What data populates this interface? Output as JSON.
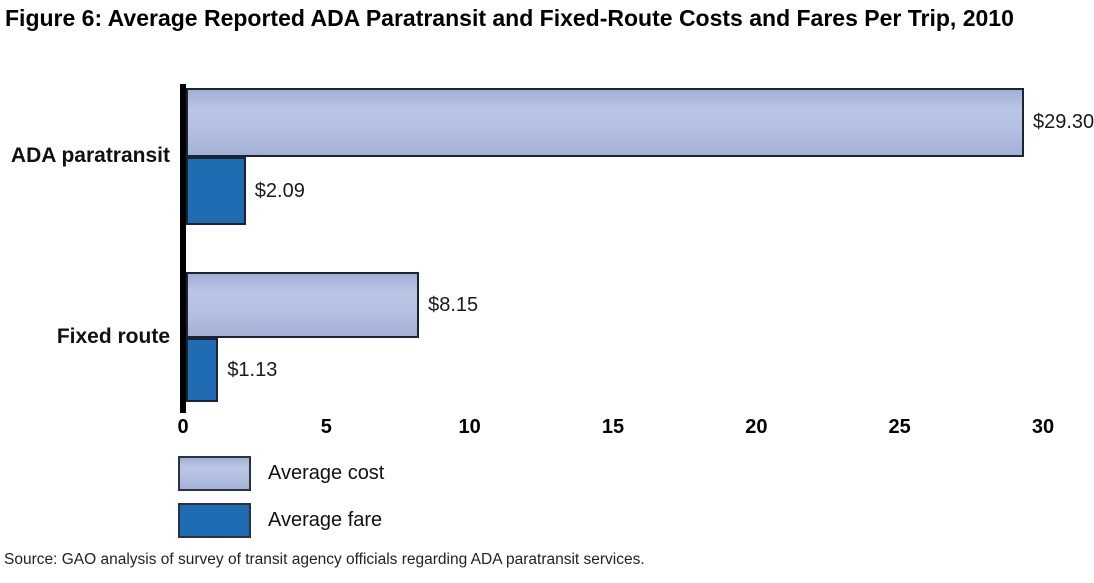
{
  "figure": {
    "title": "Figure 6: Average Reported ADA Paratransit and Fixed-Route Costs and Fares Per Trip, 2010",
    "source": "Source: GAO analysis of survey of transit agency officials regarding ADA paratransit services."
  },
  "chart_data": {
    "type": "bar",
    "orientation": "horizontal",
    "title": "Figure 6: Average Reported ADA Paratransit and Fixed-Route Costs and Fares Per Trip, 2010",
    "categories": [
      "ADA paratransit",
      "Fixed route"
    ],
    "series": [
      {
        "name": "Average cost",
        "values": [
          29.3,
          8.15
        ],
        "labels": [
          "$29.30",
          "$8.15"
        ],
        "color": "#b3bfe2"
      },
      {
        "name": "Average fare",
        "values": [
          2.09,
          1.13
        ],
        "labels": [
          "$2.09",
          "$1.13"
        ],
        "color": "#1f6cb3"
      }
    ],
    "xlim": [
      0,
      30
    ],
    "xticks": [
      "0",
      "5",
      "10",
      "15",
      "20",
      "25",
      "30"
    ],
    "grid": false,
    "legend_position": "bottom-left",
    "bar_border_color": "#1c2433",
    "axis_color": "#000000"
  }
}
